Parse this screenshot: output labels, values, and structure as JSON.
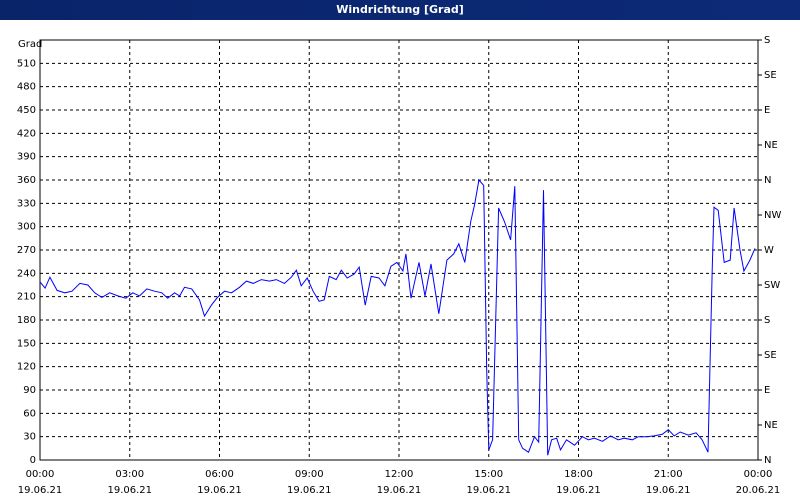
{
  "window_title": "Windrichtung [Grad]",
  "chart_data": {
    "type": "line",
    "y_label": "Grad",
    "grid": true,
    "xlim": [
      0,
      24
    ],
    "xticks": [
      {
        "value": 0,
        "label": "00:00",
        "date": "19.06.21"
      },
      {
        "value": 3,
        "label": "03:00",
        "date": "19.06.21"
      },
      {
        "value": 6,
        "label": "06:00",
        "date": "19.06.21"
      },
      {
        "value": 9,
        "label": "09:00",
        "date": "19.06.21"
      },
      {
        "value": 12,
        "label": "12:00",
        "date": "19.06.21"
      },
      {
        "value": 15,
        "label": "15:00",
        "date": "19.06.21"
      },
      {
        "value": 18,
        "label": "18:00",
        "date": "19.06.21"
      },
      {
        "value": 21,
        "label": "21:00",
        "date": "19.06.21"
      },
      {
        "value": 24,
        "label": "00:00",
        "date": "20.06.21"
      }
    ],
    "ylim": [
      0,
      540
    ],
    "yticks": [
      0,
      30,
      60,
      90,
      120,
      150,
      180,
      210,
      240,
      270,
      300,
      330,
      360,
      390,
      420,
      450,
      480,
      510
    ],
    "y2lim": [
      0,
      540
    ],
    "y2ticks": [
      {
        "value": 0,
        "label": "N"
      },
      {
        "value": 45,
        "label": "NE"
      },
      {
        "value": 90,
        "label": "E"
      },
      {
        "value": 135,
        "label": "SE"
      },
      {
        "value": 180,
        "label": "S"
      },
      {
        "value": 225,
        "label": "SW"
      },
      {
        "value": 270,
        "label": "W"
      },
      {
        "value": 315,
        "label": "NW"
      },
      {
        "value": 360,
        "label": "N"
      },
      {
        "value": 405,
        "label": "NE"
      },
      {
        "value": 450,
        "label": "E"
      },
      {
        "value": 495,
        "label": "SE"
      },
      {
        "value": 540,
        "label": "S"
      }
    ],
    "x": [
      0,
      0.17,
      0.33,
      0.57,
      0.83,
      1.07,
      1.33,
      1.6,
      1.83,
      2.07,
      2.33,
      2.6,
      2.87,
      3.1,
      3.33,
      3.57,
      3.83,
      4.07,
      4.27,
      4.5,
      4.67,
      4.83,
      5.07,
      5.33,
      5.5,
      5.73,
      5.93,
      6.17,
      6.4,
      6.67,
      6.9,
      7.13,
      7.4,
      7.67,
      7.9,
      8.17,
      8.4,
      8.57,
      8.73,
      8.93,
      9.13,
      9.33,
      9.5,
      9.67,
      9.9,
      10.07,
      10.27,
      10.5,
      10.67,
      10.87,
      11.07,
      11.33,
      11.53,
      11.73,
      11.93,
      12.13,
      12.23,
      12.4,
      12.67,
      12.87,
      13.07,
      13.33,
      13.6,
      13.83,
      14,
      14.2,
      14.4,
      14.53,
      14.67,
      14.83,
      14.93,
      15,
      15.13,
      15.33,
      15.53,
      15.73,
      15.87,
      16,
      16.13,
      16.33,
      16.53,
      16.67,
      16.83,
      16.97,
      17.1,
      17.27,
      17.4,
      17.6,
      17.87,
      18.13,
      18.33,
      18.53,
      18.8,
      19.07,
      19.33,
      19.53,
      19.8,
      20,
      20.27,
      20.53,
      20.8,
      21,
      21.2,
      21.4,
      21.67,
      21.93,
      22.13,
      22.33,
      22.47,
      22.53,
      22.67,
      22.87,
      23.07,
      23.2,
      23.4,
      23.53,
      23.73,
      23.9
    ],
    "series": [
      {
        "name": "Windrichtung",
        "color": "#0000ff",
        "values": [
          229,
          221,
          235,
          218,
          215,
          217,
          227,
          225,
          215,
          209,
          215,
          211,
          208,
          215,
          211,
          220,
          217,
          215,
          208,
          215,
          211,
          222,
          220,
          206,
          185,
          199,
          209,
          217,
          215,
          222,
          230,
          227,
          232,
          230,
          232,
          227,
          235,
          244,
          224,
          234,
          217,
          204,
          206,
          236,
          232,
          244,
          234,
          239,
          248,
          199,
          236,
          234,
          224,
          249,
          254,
          243,
          265,
          208,
          254,
          211,
          252,
          188,
          257,
          265,
          278,
          254,
          307,
          329,
          360,
          353,
          116,
          13,
          26,
          324,
          306,
          283,
          352,
          26,
          15,
          10,
          30,
          23,
          347,
          6,
          26,
          28,
          13,
          26,
          19,
          30,
          26,
          28,
          24,
          31,
          26,
          28,
          26,
          30,
          30,
          31,
          33,
          39,
          31,
          36,
          32,
          35,
          26,
          10,
          244,
          325,
          321,
          254,
          257,
          324,
          270,
          243,
          257,
          272
        ]
      }
    ]
  }
}
